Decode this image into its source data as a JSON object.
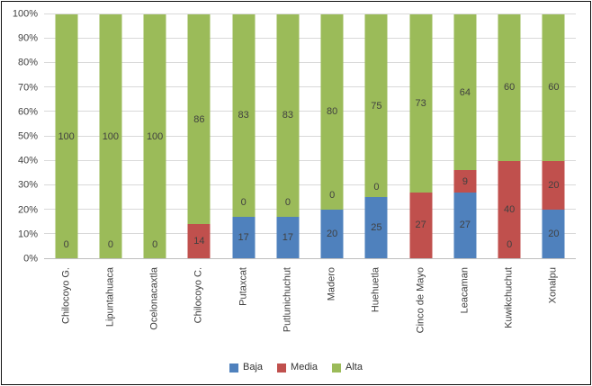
{
  "chart_data": {
    "type": "bar",
    "variant": "100-percent-stacked-column",
    "title": "",
    "xlabel": "",
    "ylabel": "",
    "categories": [
      "Chilocoyo G.",
      "Lipuntahuaca",
      "Ocelonacaxtla",
      "Chilocoyo C.",
      "Putaxcat",
      "Putlunichuchut",
      "Madero",
      "Huehuetla",
      "Cinco de Mayo",
      "Leacaman",
      "Kuwikchuchut",
      "Xonalpu"
    ],
    "series": [
      {
        "name": "Baja",
        "color": "#4F81BD",
        "values": [
          0,
          0,
          0,
          0,
          17,
          17,
          20,
          25,
          0,
          27,
          0,
          20
        ]
      },
      {
        "name": "Media",
        "color": "#C0504D",
        "values": [
          0,
          0,
          0,
          14,
          0,
          0,
          0,
          0,
          27,
          9,
          40,
          20
        ]
      },
      {
        "name": "Alta",
        "color": "#9BBB59",
        "values": [
          100,
          100,
          100,
          86,
          83,
          83,
          80,
          75,
          73,
          64,
          60,
          60
        ]
      }
    ],
    "y_ticks": [
      "0%",
      "10%",
      "20%",
      "30%",
      "40%",
      "50%",
      "60%",
      "70%",
      "80%",
      "90%",
      "100%"
    ],
    "ylim": [
      0,
      100
    ],
    "grid": true,
    "legend_position": "bottom",
    "data_labels": [
      [
        {
          "text": "100",
          "pos": 50
        },
        {
          "text": "0",
          "pos": 5.5
        }
      ],
      [
        {
          "text": "100",
          "pos": 50
        },
        {
          "text": "0",
          "pos": 5.5
        }
      ],
      [
        {
          "text": "100",
          "pos": 50
        },
        {
          "text": "0",
          "pos": 5.5
        }
      ],
      [
        {
          "text": "86",
          "pos": 57
        },
        {
          "text": "14",
          "pos": 7
        }
      ],
      [
        {
          "text": "83",
          "pos": 58.5
        },
        {
          "text": "0",
          "pos": 23
        },
        {
          "text": "17",
          "pos": 8.5
        }
      ],
      [
        {
          "text": "83",
          "pos": 58.5
        },
        {
          "text": "0",
          "pos": 23
        },
        {
          "text": "17",
          "pos": 8.5
        }
      ],
      [
        {
          "text": "80",
          "pos": 60
        },
        {
          "text": "0",
          "pos": 26
        },
        {
          "text": "20",
          "pos": 10
        }
      ],
      [
        {
          "text": "75",
          "pos": 62.5
        },
        {
          "text": "0",
          "pos": 29
        },
        {
          "text": "25",
          "pos": 12.5
        }
      ],
      [
        {
          "text": "73",
          "pos": 63.5
        },
        {
          "text": "27",
          "pos": 13.5
        }
      ],
      [
        {
          "text": "64",
          "pos": 68
        },
        {
          "text": "9",
          "pos": 31.5
        },
        {
          "text": "27",
          "pos": 13.5
        }
      ],
      [
        {
          "text": "60",
          "pos": 70
        },
        {
          "text": "40",
          "pos": 20
        },
        {
          "text": "0",
          "pos": 5.5
        }
      ],
      [
        {
          "text": "60",
          "pos": 70
        },
        {
          "text": "20",
          "pos": 30
        },
        {
          "text": "20",
          "pos": 10
        }
      ]
    ],
    "colors": {
      "grid": "#D9D9D9",
      "axis": "#BFBFBF",
      "text": "#404040"
    }
  }
}
